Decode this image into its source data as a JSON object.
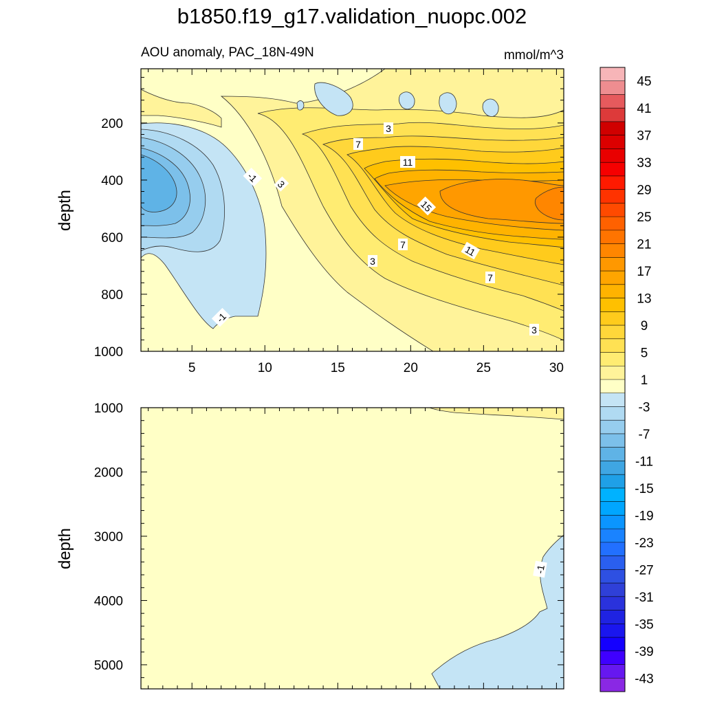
{
  "chart_data": {
    "type": "heatmap",
    "title": "b1850.f19_g17.validation_nuopc.002",
    "subtitle_left": "AOU anomaly, PAC_18N-49N",
    "subtitle_right": "mmol/m^3",
    "colorbar": {
      "labels": [
        "45",
        "41",
        "37",
        "33",
        "29",
        "25",
        "21",
        "17",
        "13",
        "9",
        "5",
        "1",
        "-3",
        "-7",
        "-11",
        "-15",
        "-19",
        "-23",
        "-27",
        "-31",
        "-35",
        "-39",
        "-43"
      ],
      "levels": [
        47,
        45,
        43,
        41,
        39,
        37,
        35,
        33,
        31,
        29,
        27,
        25,
        23,
        21,
        19,
        17,
        15,
        13,
        11,
        9,
        7,
        5,
        3,
        1,
        -1,
        -3,
        -5,
        -7,
        -9,
        -11,
        -13,
        -15,
        -17,
        -19,
        -21,
        -23,
        -25,
        -27,
        -29,
        -31,
        -33,
        -35,
        -37,
        -39,
        -41,
        -43,
        -45
      ],
      "colors": [
        "#f7b5b8",
        "#ee8d90",
        "#e65a5d",
        "#dd3a3a",
        "#d00000",
        "#dc0000",
        "#e90000",
        "#f60000",
        "#ff1a00",
        "#ff3300",
        "#ff4a00",
        "#ff6100",
        "#ff7400",
        "#ff8600",
        "#ff9800",
        "#ffa500",
        "#ffb300",
        "#ffc000",
        "#ffcb1c",
        "#ffd73a",
        "#ffe153",
        "#ffec72",
        "#fff39a",
        "#ffffc6",
        "#c4e4f5",
        "#b0daf2",
        "#96cdee",
        "#7cc0ea",
        "#5fb3e6",
        "#3fa6e3",
        "#1fa0e7",
        "#00b2ff",
        "#00a6ff",
        "#0b95ff",
        "#1a83ff",
        "#2270ff",
        "#2a5fef",
        "#2e50e2",
        "#2f40d8",
        "#2a32dc",
        "#1f23e2",
        "#1a16ee",
        "#1400ff",
        "#3f00ff",
        "#6618f0",
        "#8a28e4"
      ]
    },
    "panels": [
      {
        "name": "upper",
        "ylabel": "depth",
        "xlabel": "",
        "xlim": [
          1.5,
          30.5
        ],
        "ylim": [
          1000,
          10
        ],
        "xticks": [
          "5",
          "10",
          "15",
          "20",
          "25",
          "30"
        ],
        "yticks": [
          "200",
          "400",
          "600",
          "800",
          "1000"
        ],
        "contour_labels": [
          "3",
          "7",
          "11",
          "-1",
          "3",
          "15",
          "7",
          "11",
          "3",
          "7",
          "-1",
          "3"
        ]
      },
      {
        "name": "lower",
        "ylabel": "depth",
        "xlabel": "",
        "xlim": [
          1.5,
          30.5
        ],
        "ylim": [
          5375,
          1000
        ],
        "xticks": [],
        "yticks": [
          "1000",
          "2000",
          "3000",
          "4000",
          "5000"
        ],
        "contour_labels": [
          "-1"
        ]
      }
    ]
  }
}
